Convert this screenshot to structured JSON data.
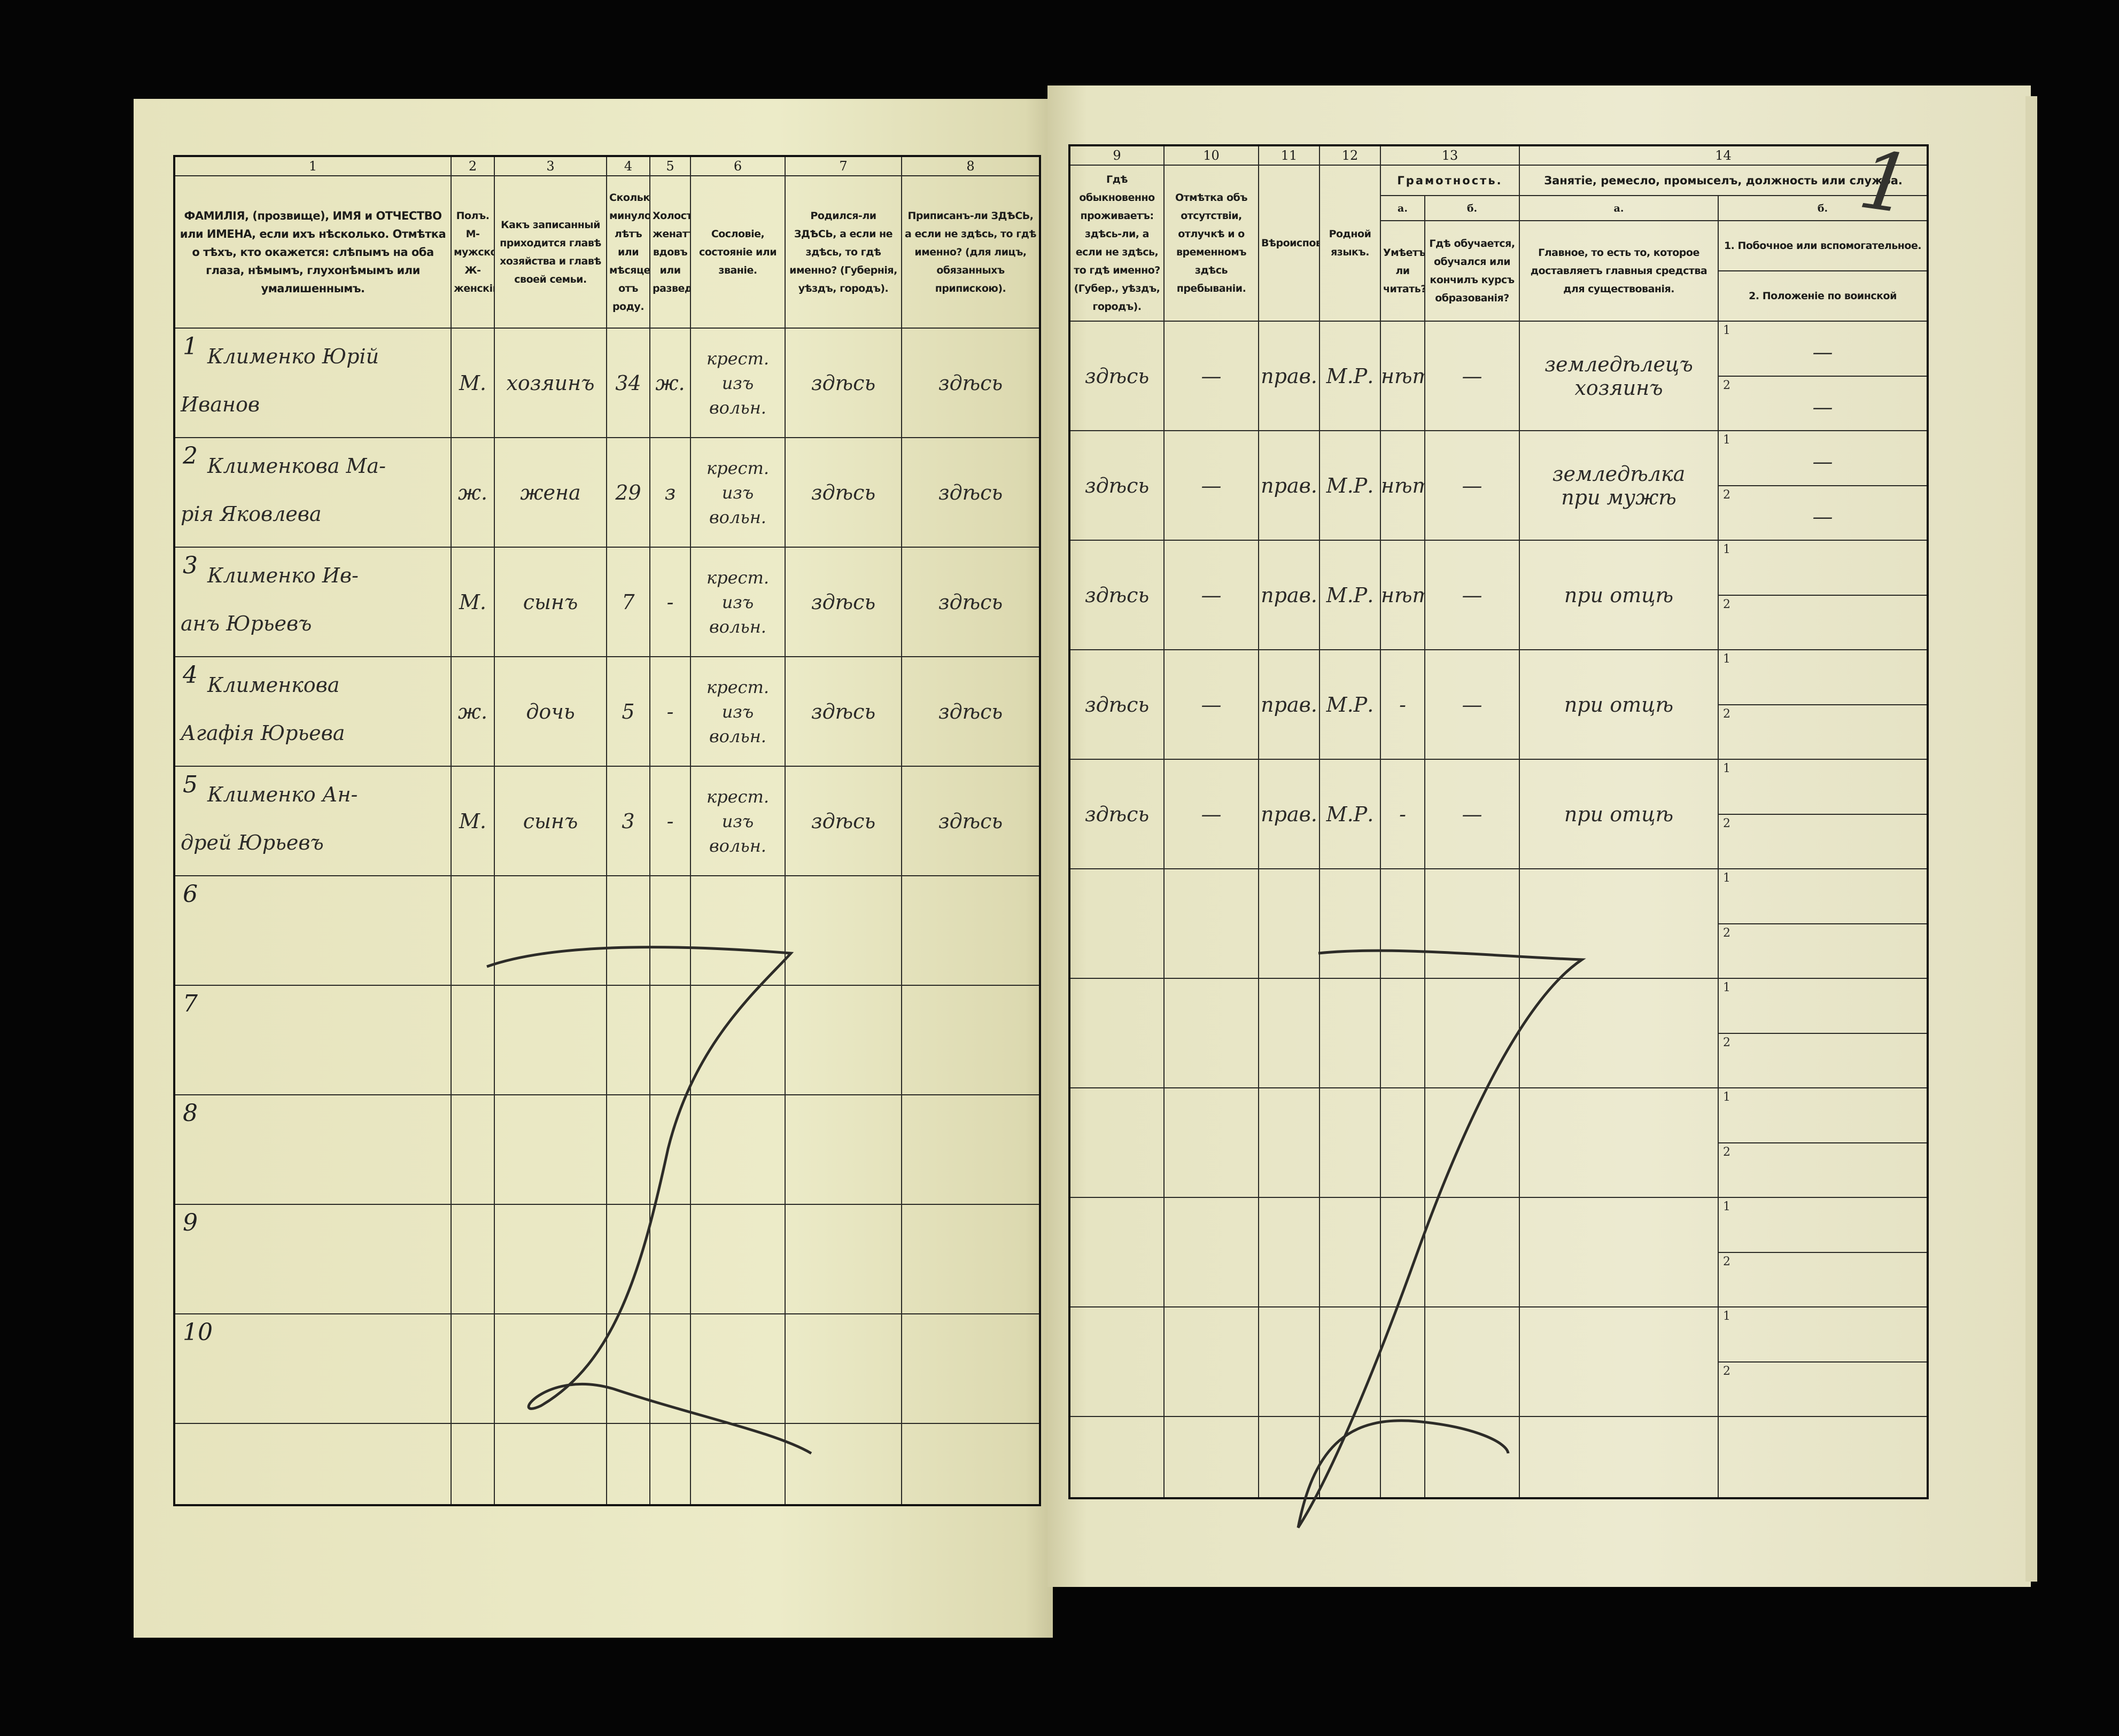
{
  "left_header": [
    {
      "num": "1",
      "text": "ФАМИЛІЯ, (прозвище), ИМЯ и ОТЧЕСТВО или ИМЕНА, если ихъ нѣсколько. Отмѣтка о тѣхъ, кто окажется: слѣпымъ на оба глаза, нѣмымъ, глухонѣмымъ или умалишеннымъ."
    },
    {
      "num": "2",
      "text": "Полъ. М-мужской. Ж-женскій."
    },
    {
      "num": "3",
      "text": "Какъ записанный приходится главѣ хозяйства и главѣ своей семьи."
    },
    {
      "num": "4",
      "text": "Сколько минуло лѣтъ или мѣсяцевъ отъ роду."
    },
    {
      "num": "5",
      "text": "Холостъ, женатъ, вдовъ или разведенъ."
    },
    {
      "num": "6",
      "text": "Сословіе, состояніе или званіе."
    },
    {
      "num": "7",
      "text": "Родился-ли ЗДѢСЬ, а если не здѣсь, то гдѣ именно? (Губернія, уѣздъ, городъ)."
    },
    {
      "num": "8",
      "text": "Приписанъ-ли ЗДѢСЬ, а если не здѣсь, то гдѣ именно? (для лицъ, обязанныхъ припискою)."
    }
  ],
  "right_header": {
    "col9": {
      "num": "9",
      "text": "Гдѣ обыкновенно проживаетъ: здѣсь-ли, а если не здѣсь, то гдѣ именно? (Губер., уѣздъ, городъ)."
    },
    "col10": {
      "num": "10",
      "text": "Отмѣтка объ отсутствіи, отлучкѣ и о временномъ здѣсь пребываніи."
    },
    "col11": {
      "num": "11",
      "text": "Вѣроисповѣданіе."
    },
    "col12": {
      "num": "12",
      "text": "Родной языкъ."
    },
    "col13": {
      "num": "13",
      "group": "Грамотность.",
      "a_label": "а.",
      "a_text": "Умѣетъ-ли читать?",
      "b_label": "б.",
      "b_text": "Гдѣ обучается, обучался или кончилъ курсъ образованія?"
    },
    "col14": {
      "num": "14",
      "group": "Занятіе, ремесло, промыселъ, должность или служба.",
      "a_label": "а.",
      "a_text": "Главное, то есть то, которое доставляетъ главныя средства для существованія.",
      "b_label": "б.",
      "b1_text": "1. Побочное или вспомогательное.",
      "b2_text": "2. Положеніе по воинской повинности."
    }
  },
  "rows": [
    {
      "n": "1",
      "name1": "Клименко Юрій",
      "name2": "Иванов",
      "sex": "М.",
      "relation": "хозяинъ",
      "age": "34",
      "marital": "ж.",
      "estate": [
        "крест.",
        "изъ",
        "вольн."
      ],
      "born": "здѣсь",
      "registered": "здѣсь",
      "resides": "здѣсь",
      "absence": "—",
      "religion": "прав.",
      "language": "М.Р.",
      "literate": "нѣтъ",
      "education": "—",
      "occupation": [
        "земледѣлецъ",
        "хозяинъ"
      ],
      "side1": "—",
      "side2": "—"
    },
    {
      "n": "2",
      "name1": "Клименкова Ма-",
      "name2": "рія Яковлева",
      "sex": "ж.",
      "relation": "жена",
      "age": "29",
      "marital": "з",
      "estate": [
        "крест.",
        "изъ",
        "вольн."
      ],
      "born": "здѣсь",
      "registered": "здѣсь",
      "resides": "здѣсь",
      "absence": "—",
      "religion": "прав.",
      "language": "М.Р.",
      "literate": "нѣтъ",
      "education": "—",
      "occupation": [
        "земледѣлка",
        "при мужѣ"
      ],
      "side1": "—",
      "side2": "—"
    },
    {
      "n": "3",
      "name1": "Клименко Ив-",
      "name2": "анъ Юрьевъ",
      "sex": "М.",
      "relation": "сынъ",
      "age": "7",
      "marital": "-",
      "estate": [
        "крест.",
        "изъ",
        "вольн."
      ],
      "born": "здѣсь",
      "registered": "здѣсь",
      "resides": "здѣсь",
      "absence": "—",
      "religion": "прав.",
      "language": "М.Р.",
      "literate": "нѣтъ",
      "education": "—",
      "occupation": [
        "при отцѣ",
        ""
      ],
      "side1": "",
      "side2": ""
    },
    {
      "n": "4",
      "name1": "Клименкова",
      "name2": "Агафія Юрьева",
      "sex": "ж.",
      "relation": "дочь",
      "age": "5",
      "marital": "-",
      "estate": [
        "крест.",
        "изъ",
        "вольн."
      ],
      "born": "здѣсь",
      "registered": "здѣсь",
      "resides": "здѣсь",
      "absence": "—",
      "religion": "прав.",
      "language": "М.Р.",
      "literate": "-",
      "education": "—",
      "occupation": [
        "при отцѣ",
        ""
      ],
      "side1": "",
      "side2": ""
    },
    {
      "n": "5",
      "name1": "Клименко Ан-",
      "name2": "дрей Юрьевъ",
      "sex": "М.",
      "relation": "сынъ",
      "age": "3",
      "marital": "-",
      "estate": [
        "крест.",
        "изъ",
        "вольн."
      ],
      "born": "здѣсь",
      "registered": "здѣсь",
      "resides": "здѣсь",
      "absence": "—",
      "religion": "прав.",
      "language": "М.Р.",
      "literate": "-",
      "education": "—",
      "occupation": [
        "при отцѣ",
        ""
      ],
      "side1": "",
      "side2": ""
    },
    {
      "n": "6"
    },
    {
      "n": "7"
    },
    {
      "n": "8"
    },
    {
      "n": "9"
    },
    {
      "n": "10"
    }
  ],
  "sub_labels": {
    "one": "1",
    "two": "2"
  },
  "page_mark": "1",
  "colors": {
    "paper": "#ebe8c6",
    "ink_print": "#1c1c1a",
    "ink_hand": "#2b2a28",
    "background": "#050505"
  }
}
